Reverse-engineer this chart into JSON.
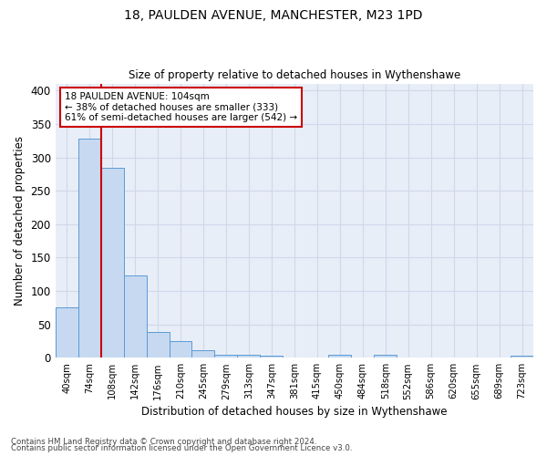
{
  "title": "18, PAULDEN AVENUE, MANCHESTER, M23 1PD",
  "subtitle": "Size of property relative to detached houses in Wythenshawe",
  "xlabel": "Distribution of detached houses by size in Wythenshawe",
  "ylabel": "Number of detached properties",
  "footnote1": "Contains HM Land Registry data © Crown copyright and database right 2024.",
  "footnote2": "Contains public sector information licensed under the Open Government Licence v3.0.",
  "bar_labels": [
    "40sqm",
    "74sqm",
    "108sqm",
    "142sqm",
    "176sqm",
    "210sqm",
    "245sqm",
    "279sqm",
    "313sqm",
    "347sqm",
    "381sqm",
    "415sqm",
    "450sqm",
    "484sqm",
    "518sqm",
    "552sqm",
    "586sqm",
    "620sqm",
    "655sqm",
    "689sqm",
    "723sqm"
  ],
  "bar_values": [
    75,
    328,
    284,
    123,
    39,
    25,
    12,
    5,
    5,
    3,
    0,
    0,
    5,
    0,
    4,
    0,
    0,
    0,
    0,
    0,
    3
  ],
  "bar_color": "#c6d9f0",
  "bar_edge_color": "#5b9bd5",
  "annotation_box_text": "18 PAULDEN AVENUE: 104sqm\n← 38% of detached houses are smaller (333)\n61% of semi-detached houses are larger (542) →",
  "annotation_box_color": "#ffffff",
  "annotation_box_edge_color": "#cc0000",
  "annotation_line_color": "#cc0000",
  "ylim": [
    0,
    410
  ],
  "yticks": [
    0,
    50,
    100,
    150,
    200,
    250,
    300,
    350,
    400
  ],
  "grid_color": "#d0d8e8",
  "background_color": "#e8eef8",
  "line_bin_index": 1.5
}
